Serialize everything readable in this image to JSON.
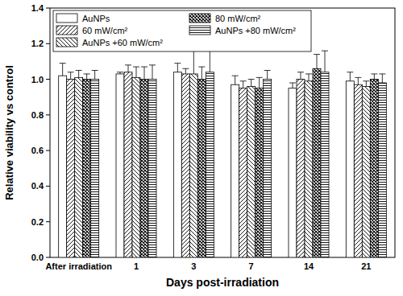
{
  "chart_data": {
    "type": "bar",
    "x_label": "Days post-irradiation",
    "y_label": "Relative viability vs control",
    "categories": [
      "After irradiation",
      "1",
      "3",
      "7",
      "14",
      "21"
    ],
    "series": [
      {
        "name": "AuNPs",
        "color": "#ffffff",
        "values": [
          1.02,
          1.03,
          1.04,
          0.97,
          0.95,
          0.99
        ],
        "errors": [
          0.07,
          0.01,
          0.05,
          0.05,
          0.03,
          0.05
        ]
      },
      {
        "name": "60 mW/cm²",
        "color": "#ffffff",
        "values": [
          1.0,
          1.04,
          1.03,
          0.95,
          1.0,
          0.97
        ],
        "errors": [
          0.04,
          0.04,
          0.03,
          0.04,
          0.04,
          0.04
        ]
      },
      {
        "name": "AuNPs +60 mW/cm²",
        "color": "#ffffff",
        "values": [
          1.01,
          1.01,
          1.03,
          0.96,
          0.99,
          0.96
        ],
        "errors": [
          0.04,
          0.06,
          0.13,
          0.04,
          0.04,
          0.03
        ]
      },
      {
        "name": "80 mW/cm²",
        "color": "#ffffff",
        "values": [
          1.0,
          1.0,
          1.0,
          0.95,
          1.06,
          1.0
        ],
        "errors": [
          0.03,
          0.07,
          0.07,
          0.06,
          0.08,
          0.03
        ]
      },
      {
        "name": "AuNPs +80 mW/cm²",
        "color": "#ffffff",
        "values": [
          1.0,
          1.0,
          1.04,
          1.0,
          1.04,
          0.98
        ],
        "errors": [
          0.05,
          0.08,
          0.13,
          0.05,
          0.12,
          0.05
        ]
      }
    ],
    "ylim": [
      0,
      1.4
    ],
    "yticks": [
      {
        "value": 0,
        "label": "0.0"
      },
      0.2,
      0.4,
      0.6,
      0.8,
      {
        "value": 1,
        "label": "1.0"
      },
      1.2,
      1.4
    ],
    "legend": "upper left",
    "grid": false
  }
}
